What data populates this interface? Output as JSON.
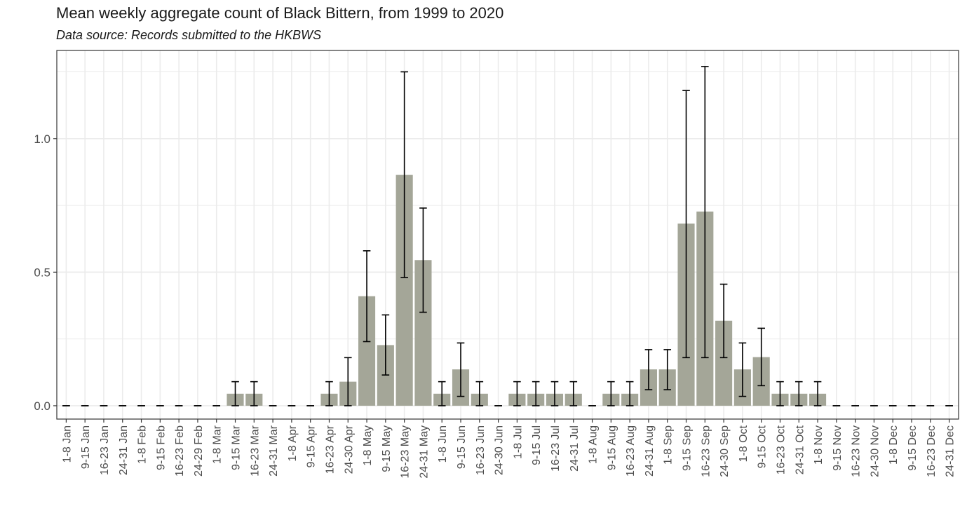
{
  "chart_data": {
    "type": "bar",
    "title": "Mean weekly aggregate count of Black Bittern, from 1999 to 2020",
    "subtitle": "Data source: Records submitted to the HKBWS",
    "xlabel": "",
    "ylabel": "",
    "ylim": [
      -0.05,
      1.33
    ],
    "yticks": [
      0.0,
      0.5,
      1.0
    ],
    "ytick_labels": [
      "0.0",
      "0.5",
      "1.0"
    ],
    "grid": true,
    "colors": {
      "bar": "#a4a698",
      "errorbar": "#000000",
      "grid": "#ebebeb",
      "panel_border": "#333333"
    },
    "categories": [
      "1-8 Jan",
      "9-15 Jan",
      "16-23 Jan",
      "24-31 Jan",
      "1-8 Feb",
      "9-15 Feb",
      "16-23 Feb",
      "24-29 Feb",
      "1-8 Mar",
      "9-15 Mar",
      "16-23 Mar",
      "24-31 Mar",
      "1-8 Apr",
      "9-15 Apr",
      "16-23 Apr",
      "24-30 Apr",
      "1-8 May",
      "9-15 May",
      "16-23 May",
      "24-31 May",
      "1-8 Jun",
      "9-15 Jun",
      "16-23 Jun",
      "24-30 Jun",
      "1-8 Jul",
      "9-15 Jul",
      "16-23 Jul",
      "24-31 Jul",
      "1-8 Aug",
      "9-15 Aug",
      "16-23 Aug",
      "24-31 Aug",
      "1-8 Sep",
      "9-15 Sep",
      "16-23 Sep",
      "24-30 Sep",
      "1-8 Oct",
      "9-15 Oct",
      "16-23 Oct",
      "24-31 Oct",
      "1-8 Nov",
      "9-15 Nov",
      "16-23 Nov",
      "24-30 Nov",
      "1-8 Dec",
      "9-15 Dec",
      "16-23 Dec",
      "24-31 Dec"
    ],
    "values": [
      0,
      0,
      0,
      0,
      0,
      0,
      0,
      0,
      0,
      0.045,
      0.045,
      0,
      0,
      0,
      0.045,
      0.09,
      0.41,
      0.227,
      0.864,
      0.545,
      0.045,
      0.136,
      0.045,
      0,
      0.045,
      0.045,
      0.045,
      0.045,
      0,
      0.045,
      0.045,
      0.136,
      0.136,
      0.682,
      0.727,
      0.318,
      0.136,
      0.182,
      0.045,
      0.045,
      0.045,
      0,
      0,
      0,
      0,
      0,
      0,
      0
    ],
    "error_low": [
      0,
      0,
      0,
      0,
      0,
      0,
      0,
      0,
      0,
      0,
      0,
      0,
      0,
      0,
      0,
      0,
      0.24,
      0.115,
      0.48,
      0.35,
      0,
      0.035,
      0,
      0,
      0,
      0,
      0,
      0,
      0,
      0,
      0,
      0.06,
      0.06,
      0.18,
      0.18,
      0.18,
      0.035,
      0.075,
      0,
      0,
      0,
      0,
      0,
      0,
      0,
      0,
      0,
      0
    ],
    "error_high": [
      0,
      0,
      0,
      0,
      0,
      0,
      0,
      0,
      0,
      0.09,
      0.09,
      0,
      0,
      0,
      0.09,
      0.18,
      0.58,
      0.34,
      1.25,
      0.74,
      0.09,
      0.235,
      0.09,
      0,
      0.09,
      0.09,
      0.09,
      0.09,
      0,
      0.09,
      0.09,
      0.21,
      0.21,
      1.18,
      1.27,
      0.455,
      0.235,
      0.29,
      0.09,
      0.09,
      0.09,
      0,
      0,
      0,
      0,
      0,
      0,
      0
    ]
  }
}
